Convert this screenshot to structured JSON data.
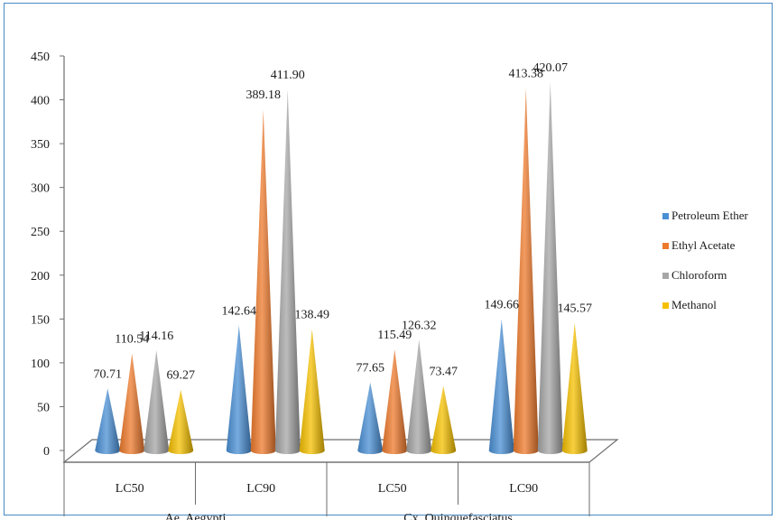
{
  "chart_data": {
    "type": "bar",
    "shape": "cone",
    "style": "3d",
    "groups": [
      "Ae. Aegypti",
      "Cx. Quinquefasciatus"
    ],
    "categories": [
      "LC50",
      "LC90",
      "LC50",
      "LC90"
    ],
    "category_groups": [
      0,
      0,
      1,
      1
    ],
    "series": [
      {
        "name": "Petroleum Ether",
        "color": "#4a8fd4",
        "values": [
          70.71,
          142.64,
          77.65,
          149.66
        ],
        "labels": [
          "70.71",
          "142.64",
          "77.65",
          "149.66"
        ]
      },
      {
        "name": "Ethyl Acetate",
        "color": "#ee7a2c",
        "values": [
          110.54,
          389.18,
          115.49,
          413.38
        ],
        "labels": [
          "110.54",
          "389.18",
          "115.49",
          "413.38"
        ]
      },
      {
        "name": "Chloroform",
        "color": "#a6a6a6",
        "values": [
          114.16,
          411.9,
          126.32,
          420.07
        ],
        "labels": [
          "114.16",
          "411.90",
          "126.32",
          "420.07"
        ]
      },
      {
        "name": "Methanol",
        "color": "#f5c000",
        "values": [
          69.27,
          138.49,
          73.47,
          145.57
        ],
        "labels": [
          "69.27",
          "138.49",
          "73.47",
          "145.57"
        ]
      }
    ],
    "y_ticks": [
      "0",
      "50",
      "100",
      "150",
      "200",
      "250",
      "300",
      "350",
      "400",
      "450"
    ],
    "ylim": [
      0,
      450
    ],
    "title": "",
    "xlabel": "",
    "ylabel": "",
    "legend_position": "right",
    "grid": false
  }
}
